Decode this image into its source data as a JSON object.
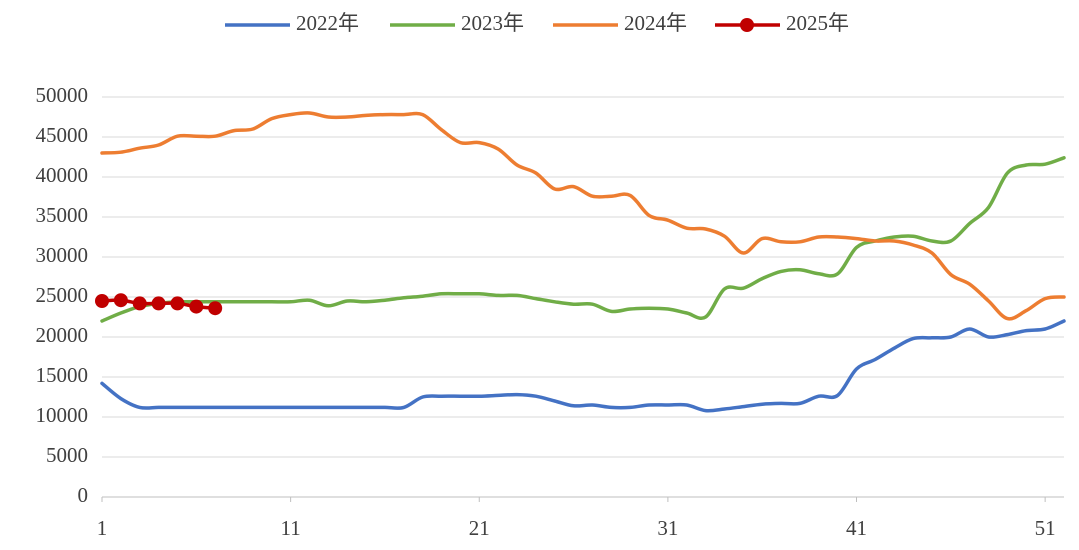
{
  "chart_data": {
    "type": "line",
    "x": [
      1,
      2,
      3,
      4,
      5,
      6,
      7,
      8,
      9,
      10,
      11,
      12,
      13,
      14,
      15,
      16,
      17,
      18,
      19,
      20,
      21,
      22,
      23,
      24,
      25,
      26,
      27,
      28,
      29,
      30,
      31,
      32,
      33,
      34,
      35,
      36,
      37,
      38,
      39,
      40,
      41,
      42,
      43,
      44,
      45,
      46,
      47,
      48,
      49,
      50,
      51,
      52
    ],
    "series": [
      {
        "name": "2022年",
        "color": "#4472c4",
        "values": [
          14200,
          12300,
          11200,
          11200,
          11200,
          11200,
          11200,
          11200,
          11200,
          11200,
          11200,
          11200,
          11200,
          11200,
          11200,
          11200,
          11200,
          12500,
          12600,
          12600,
          12600,
          12700,
          12800,
          12600,
          12000,
          11400,
          11500,
          11200,
          11200,
          11500,
          11500,
          11500,
          10800,
          11000,
          11300,
          11600,
          11700,
          11700,
          12600,
          12700,
          16000,
          17200,
          18600,
          19800,
          19900,
          20000,
          21000,
          20000,
          20300,
          20800,
          21000,
          22000
        ]
      },
      {
        "name": "2023年",
        "color": "#70ad47",
        "values": [
          22000,
          23000,
          23800,
          24200,
          24400,
          24400,
          24400,
          24400,
          24400,
          24400,
          24400,
          24600,
          23900,
          24500,
          24400,
          24600,
          24900,
          25100,
          25400,
          25400,
          25400,
          25200,
          25200,
          24800,
          24400,
          24100,
          24100,
          23200,
          23500,
          23600,
          23500,
          23000,
          22500,
          26000,
          26100,
          27300,
          28200,
          28400,
          27900,
          27900,
          31200,
          32000,
          32500,
          32600,
          32000,
          32000,
          34200,
          36200,
          40500,
          41500,
          41600,
          42400
        ]
      },
      {
        "name": "2024年",
        "color": "#ed7d31",
        "values": [
          43000,
          43100,
          43600,
          44000,
          45100,
          45100,
          45100,
          45800,
          46000,
          47300,
          47800,
          48000,
          47500,
          47500,
          47700,
          47800,
          47800,
          47800,
          45900,
          44300,
          44300,
          43500,
          41500,
          40500,
          38500,
          38800,
          37600,
          37600,
          37700,
          35200,
          34600,
          33600,
          33500,
          32600,
          30500,
          32300,
          31900,
          31900,
          32500,
          32500,
          32300,
          32000,
          32000,
          31500,
          30500,
          27800,
          26600,
          24500,
          22300,
          23300,
          24800,
          25000
        ]
      },
      {
        "name": "2025年",
        "color": "#c00000",
        "markers": true,
        "values": [
          24500,
          24600,
          24200,
          24200,
          24200,
          23800,
          23600,
          null,
          null,
          null,
          null,
          null,
          null,
          null,
          null,
          null,
          null,
          null,
          null,
          null,
          null,
          null,
          null,
          null,
          null,
          null,
          null,
          null,
          null,
          null,
          null,
          null,
          null,
          null,
          null,
          null,
          null,
          null,
          null,
          null,
          null,
          null,
          null,
          null,
          null,
          null,
          null,
          null,
          null,
          null,
          null,
          null
        ]
      }
    ],
    "xlim": [
      1,
      52
    ],
    "xticks": [
      1,
      11,
      21,
      31,
      41,
      51
    ],
    "ylim": [
      0,
      50000
    ],
    "yticks": [
      0,
      5000,
      10000,
      15000,
      20000,
      25000,
      30000,
      35000,
      40000,
      45000,
      50000
    ],
    "grid": true,
    "legend": "top"
  }
}
